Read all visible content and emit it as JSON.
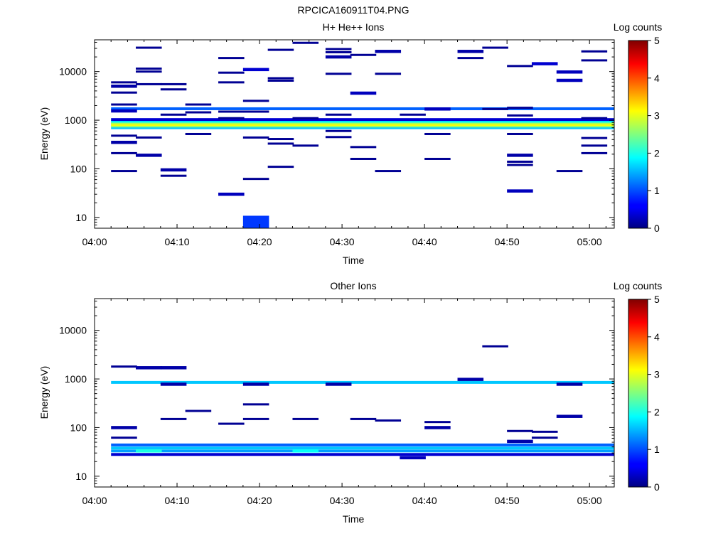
{
  "figure": {
    "title": "RPCICA160911T04.PNG"
  },
  "colorbar": {
    "label": "Log counts",
    "ticks": [
      "0",
      "1",
      "2",
      "3",
      "4",
      "5"
    ],
    "range": [
      0,
      5
    ]
  },
  "chart_data": [
    {
      "type": "heatmap",
      "title": "H+ He++ Ions",
      "xlabel": "Time",
      "ylabel": "Energy (eV)",
      "yscale": "log",
      "ylim": [
        6,
        45000
      ],
      "xlim_minutes": [
        0,
        63
      ],
      "x_tick_labels": [
        "04:00",
        "04:10",
        "04:20",
        "04:30",
        "04:40",
        "04:50",
        "05:00"
      ],
      "y_tick_labels": [
        "10",
        "100",
        "1000",
        "10000"
      ],
      "bands": [
        {
          "e": 700,
          "v": 1.6
        },
        {
          "e": 760,
          "v": 2.6
        },
        {
          "e": 820,
          "v": 3.1
        },
        {
          "e": 880,
          "v": 2.7
        },
        {
          "e": 950,
          "v": 1.9
        },
        {
          "e": 1030,
          "v": 0.4
        },
        {
          "e": 1720,
          "v": 1.1
        }
      ],
      "cells": [
        {
          "t": 2,
          "e": 90,
          "v": 0.1
        },
        {
          "t": 2,
          "e": 210,
          "v": 0.1
        },
        {
          "t": 2,
          "e": 350,
          "v": 0.2
        },
        {
          "t": 2,
          "e": 480,
          "v": 0.1
        },
        {
          "t": 2,
          "e": 1550,
          "v": 0.3
        },
        {
          "t": 2,
          "e": 2100,
          "v": 0.1
        },
        {
          "t": 2,
          "e": 3700,
          "v": 0.1
        },
        {
          "t": 2,
          "e": 5000,
          "v": 0.2
        },
        {
          "t": 2,
          "e": 6000,
          "v": 0.1
        },
        {
          "t": 5,
          "e": 190,
          "v": 0.2
        },
        {
          "t": 5,
          "e": 440,
          "v": 0.1
        },
        {
          "t": 5,
          "e": 5500,
          "v": 0.1
        },
        {
          "t": 5,
          "e": 10000,
          "v": 0.1
        },
        {
          "t": 5,
          "e": 11500,
          "v": 0.1
        },
        {
          "t": 5,
          "e": 31000,
          "v": 0.1
        },
        {
          "t": 8,
          "e": 72,
          "v": 0.1
        },
        {
          "t": 8,
          "e": 95,
          "v": 0.2
        },
        {
          "t": 8,
          "e": 1300,
          "v": 0.1
        },
        {
          "t": 8,
          "e": 4300,
          "v": 0.1
        },
        {
          "t": 8,
          "e": 5500,
          "v": 0.1
        },
        {
          "t": 11,
          "e": 520,
          "v": 0.1
        },
        {
          "t": 11,
          "e": 1450,
          "v": 0.1
        },
        {
          "t": 11,
          "e": 2100,
          "v": 0.1
        },
        {
          "t": 15,
          "e": 30,
          "v": 0.3
        },
        {
          "t": 15,
          "e": 1100,
          "v": 0.1
        },
        {
          "t": 15,
          "e": 1500,
          "v": 0.1
        },
        {
          "t": 15,
          "e": 6000,
          "v": 0.1
        },
        {
          "t": 15,
          "e": 9500,
          "v": 0.1
        },
        {
          "t": 15,
          "e": 19000,
          "v": 0.1
        },
        {
          "t": 18,
          "e": 8,
          "v": 0.9
        },
        {
          "t": 18,
          "e": 62,
          "v": 0.1
        },
        {
          "t": 18,
          "e": 440,
          "v": 0.1
        },
        {
          "t": 18,
          "e": 1500,
          "v": 0.1
        },
        {
          "t": 18,
          "e": 2500,
          "v": 0.1
        },
        {
          "t": 18,
          "e": 11000,
          "v": 0.4
        },
        {
          "t": 21,
          "e": 110,
          "v": 0.1
        },
        {
          "t": 21,
          "e": 330,
          "v": 0.1
        },
        {
          "t": 21,
          "e": 410,
          "v": 0.1
        },
        {
          "t": 21,
          "e": 6500,
          "v": 0.1
        },
        {
          "t": 21,
          "e": 7300,
          "v": 0.1
        },
        {
          "t": 21,
          "e": 28000,
          "v": 0.1
        },
        {
          "t": 24,
          "e": 300,
          "v": 0.1
        },
        {
          "t": 24,
          "e": 1100,
          "v": 0.1
        },
        {
          "t": 24,
          "e": 39000,
          "v": 0.1
        },
        {
          "t": 28,
          "e": 450,
          "v": 0.1
        },
        {
          "t": 28,
          "e": 600,
          "v": 0.1
        },
        {
          "t": 28,
          "e": 1300,
          "v": 0.1
        },
        {
          "t": 28,
          "e": 9000,
          "v": 0.1
        },
        {
          "t": 28,
          "e": 20000,
          "v": 0.2
        },
        {
          "t": 28,
          "e": 25000,
          "v": 0.1
        },
        {
          "t": 28,
          "e": 29000,
          "v": 0.1
        },
        {
          "t": 31,
          "e": 160,
          "v": 0.1
        },
        {
          "t": 31,
          "e": 280,
          "v": 0.1
        },
        {
          "t": 31,
          "e": 3600,
          "v": 0.3
        },
        {
          "t": 31,
          "e": 22000,
          "v": 0.1
        },
        {
          "t": 34,
          "e": 90,
          "v": 0.1
        },
        {
          "t": 34,
          "e": 9000,
          "v": 0.1
        },
        {
          "t": 34,
          "e": 26000,
          "v": 0.2
        },
        {
          "t": 37,
          "e": 1300,
          "v": 0.1
        },
        {
          "t": 40,
          "e": 160,
          "v": 0.1
        },
        {
          "t": 40,
          "e": 520,
          "v": 0.1
        },
        {
          "t": 40,
          "e": 1700,
          "v": 0.3
        },
        {
          "t": 44,
          "e": 19000,
          "v": 0.1
        },
        {
          "t": 44,
          "e": 26000,
          "v": 0.2
        },
        {
          "t": 47,
          "e": 1700,
          "v": 0.1
        },
        {
          "t": 47,
          "e": 31000,
          "v": 0.1
        },
        {
          "t": 50,
          "e": 35,
          "v": 0.3
        },
        {
          "t": 50,
          "e": 120,
          "v": 0.1
        },
        {
          "t": 50,
          "e": 140,
          "v": 0.1
        },
        {
          "t": 50,
          "e": 190,
          "v": 0.2
        },
        {
          "t": 50,
          "e": 520,
          "v": 0.1
        },
        {
          "t": 50,
          "e": 1250,
          "v": 0.1
        },
        {
          "t": 50,
          "e": 1800,
          "v": 0.1
        },
        {
          "t": 50,
          "e": 13000,
          "v": 0.1
        },
        {
          "t": 53,
          "e": 14500,
          "v": 0.4
        },
        {
          "t": 56,
          "e": 90,
          "v": 0.1
        },
        {
          "t": 56,
          "e": 6600,
          "v": 0.3
        },
        {
          "t": 56,
          "e": 9800,
          "v": 0.3
        },
        {
          "t": 59,
          "e": 210,
          "v": 0.1
        },
        {
          "t": 59,
          "e": 300,
          "v": 0.1
        },
        {
          "t": 59,
          "e": 430,
          "v": 0.1
        },
        {
          "t": 59,
          "e": 1100,
          "v": 0.1
        },
        {
          "t": 59,
          "e": 17000,
          "v": 0.1
        },
        {
          "t": 59,
          "e": 26000,
          "v": 0.1
        }
      ]
    },
    {
      "type": "heatmap",
      "title": "Other Ions",
      "xlabel": "Time",
      "ylabel": "Energy (eV)",
      "yscale": "log",
      "ylim": [
        6,
        45000
      ],
      "xlim_minutes": [
        0,
        63
      ],
      "x_tick_labels": [
        "04:00",
        "04:10",
        "04:20",
        "04:30",
        "04:40",
        "04:50",
        "05:00"
      ],
      "y_tick_labels": [
        "10",
        "100",
        "1000",
        "10000"
      ],
      "bands": [
        {
          "e": 28,
          "v": 0.4
        },
        {
          "e": 33,
          "v": 1.4
        },
        {
          "e": 38,
          "v": 1.6
        },
        {
          "e": 44,
          "v": 1.1
        },
        {
          "e": 850,
          "v": 1.6
        }
      ],
      "cells": [
        {
          "t": 2,
          "e": 62,
          "v": 0.1
        },
        {
          "t": 2,
          "e": 100,
          "v": 0.2
        },
        {
          "t": 2,
          "e": 1800,
          "v": 0.1
        },
        {
          "t": 5,
          "e": 33,
          "v": 2.0
        },
        {
          "t": 5,
          "e": 1700,
          "v": 0.2
        },
        {
          "t": 8,
          "e": 150,
          "v": 0.1
        },
        {
          "t": 8,
          "e": 780,
          "v": 0.2
        },
        {
          "t": 8,
          "e": 1700,
          "v": 0.2
        },
        {
          "t": 11,
          "e": 220,
          "v": 0.1
        },
        {
          "t": 15,
          "e": 120,
          "v": 0.1
        },
        {
          "t": 18,
          "e": 150,
          "v": 0.1
        },
        {
          "t": 18,
          "e": 300,
          "v": 0.1
        },
        {
          "t": 18,
          "e": 780,
          "v": 0.2
        },
        {
          "t": 24,
          "e": 33,
          "v": 1.9
        },
        {
          "t": 24,
          "e": 150,
          "v": 0.1
        },
        {
          "t": 28,
          "e": 780,
          "v": 0.2
        },
        {
          "t": 31,
          "e": 150,
          "v": 0.1
        },
        {
          "t": 34,
          "e": 140,
          "v": 0.1
        },
        {
          "t": 37,
          "e": 24,
          "v": 0.3
        },
        {
          "t": 40,
          "e": 100,
          "v": 0.2
        },
        {
          "t": 40,
          "e": 130,
          "v": 0.1
        },
        {
          "t": 44,
          "e": 980,
          "v": 0.2
        },
        {
          "t": 47,
          "e": 4700,
          "v": 0.1
        },
        {
          "t": 50,
          "e": 52,
          "v": 0.2
        },
        {
          "t": 50,
          "e": 85,
          "v": 0.1
        },
        {
          "t": 53,
          "e": 62,
          "v": 0.1
        },
        {
          "t": 53,
          "e": 82,
          "v": 0.1
        },
        {
          "t": 56,
          "e": 170,
          "v": 0.2
        },
        {
          "t": 56,
          "e": 780,
          "v": 0.2
        }
      ]
    }
  ]
}
